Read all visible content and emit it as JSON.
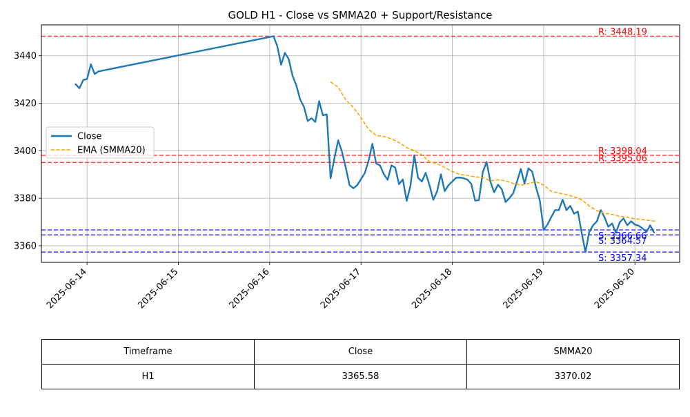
{
  "chart_data": {
    "type": "line",
    "title": "GOLD H1 - Close vs SMMA20 + Support/Resistance",
    "xlabel": "",
    "ylabel": "",
    "xlim": [
      "2025-06-13T12:00",
      "2025-06-20T11:45"
    ],
    "ylim": [
      3353,
      3453
    ],
    "x_ticks": [
      "2025-06-14",
      "2025-06-15",
      "2025-06-16",
      "2025-06-17",
      "2025-06-18",
      "2025-06-19",
      "2025-06-20"
    ],
    "y_ticks": [
      3360,
      3380,
      3400,
      3420,
      3440
    ],
    "grid": true,
    "legend": {
      "position": "center-left",
      "entries": [
        "Close",
        "EMA (SMMA20)"
      ]
    },
    "series": [
      {
        "name": "Close",
        "color": "#1f77b4",
        "style": "solid",
        "points": [
          [
            "2025-06-13T21:00",
            3428.0
          ],
          [
            "2025-06-13T22:00",
            3426.3
          ],
          [
            "2025-06-13T23:00",
            3429.8
          ],
          [
            "2025-06-14T00:00",
            3430.2
          ],
          [
            "2025-06-14T01:00",
            3436.4
          ],
          [
            "2025-06-14T02:00",
            3432.3
          ],
          [
            "2025-06-14T03:00",
            3433.4
          ],
          [
            "2025-06-16T01:00",
            3448.2
          ],
          [
            "2025-06-16T02:00",
            3444.0
          ],
          [
            "2025-06-16T03:00",
            3436.2
          ],
          [
            "2025-06-16T04:00",
            3441.2
          ],
          [
            "2025-06-16T05:00",
            3438.6
          ],
          [
            "2025-06-16T06:00",
            3431.6
          ],
          [
            "2025-06-16T07:00",
            3427.6
          ],
          [
            "2025-06-16T08:00",
            3421.6
          ],
          [
            "2025-06-16T09:00",
            3418.5
          ],
          [
            "2025-06-16T10:00",
            3412.5
          ],
          [
            "2025-06-16T11:00",
            3413.7
          ],
          [
            "2025-06-16T12:00",
            3412.1
          ],
          [
            "2025-06-16T13:00",
            3420.9
          ],
          [
            "2025-06-16T14:00",
            3414.9
          ],
          [
            "2025-06-16T15:00",
            3415.3
          ],
          [
            "2025-06-16T16:00",
            3388.4
          ],
          [
            "2025-06-16T17:00",
            3396.8
          ],
          [
            "2025-06-16T18:00",
            3404.4
          ],
          [
            "2025-06-16T19:00",
            3399.6
          ],
          [
            "2025-06-16T20:00",
            3392.9
          ],
          [
            "2025-06-16T21:00",
            3385.5
          ],
          [
            "2025-06-16T22:00",
            3384.2
          ],
          [
            "2025-06-16T23:00",
            3385.5
          ],
          [
            "2025-06-17T01:00",
            3390.6
          ],
          [
            "2025-06-17T02:00",
            3395.8
          ],
          [
            "2025-06-17T03:00",
            3402.9
          ],
          [
            "2025-06-17T04:00",
            3394.6
          ],
          [
            "2025-06-17T05:00",
            3393.8
          ],
          [
            "2025-06-17T06:00",
            3390.1
          ],
          [
            "2025-06-17T07:00",
            3387.8
          ],
          [
            "2025-06-17T08:00",
            3393.8
          ],
          [
            "2025-06-17T09:00",
            3392.9
          ],
          [
            "2025-06-17T10:00",
            3385.9
          ],
          [
            "2025-06-17T11:00",
            3387.9
          ],
          [
            "2025-06-17T12:00",
            3378.9
          ],
          [
            "2025-06-17T13:00",
            3385.3
          ],
          [
            "2025-06-17T14:00",
            3398.1
          ],
          [
            "2025-06-17T15:00",
            3388.6
          ],
          [
            "2025-06-17T16:00",
            3387.0
          ],
          [
            "2025-06-17T17:00",
            3390.7
          ],
          [
            "2025-06-17T18:00",
            3385.5
          ],
          [
            "2025-06-17T19:00",
            3379.3
          ],
          [
            "2025-06-17T20:00",
            3382.9
          ],
          [
            "2025-06-17T21:00",
            3390.1
          ],
          [
            "2025-06-17T22:00",
            3383.0
          ],
          [
            "2025-06-17T23:00",
            3385.5
          ],
          [
            "2025-06-18T01:00",
            3388.6
          ],
          [
            "2025-06-18T02:00",
            3388.7
          ],
          [
            "2025-06-18T03:00",
            3388.4
          ],
          [
            "2025-06-18T04:00",
            3387.8
          ],
          [
            "2025-06-18T05:00",
            3386.0
          ],
          [
            "2025-06-18T06:00",
            3379.0
          ],
          [
            "2025-06-18T07:00",
            3379.2
          ],
          [
            "2025-06-18T08:00",
            3390.9
          ],
          [
            "2025-06-18T09:00",
            3395.3
          ],
          [
            "2025-06-18T10:00",
            3387.0
          ],
          [
            "2025-06-18T11:00",
            3382.5
          ],
          [
            "2025-06-18T12:00",
            3385.7
          ],
          [
            "2025-06-18T13:00",
            3383.8
          ],
          [
            "2025-06-18T14:00",
            3378.4
          ],
          [
            "2025-06-18T15:00",
            3380.0
          ],
          [
            "2025-06-18T16:00",
            3382.1
          ],
          [
            "2025-06-18T17:00",
            3387.0
          ],
          [
            "2025-06-18T18:00",
            3392.3
          ],
          [
            "2025-06-18T19:00",
            3386.2
          ],
          [
            "2025-06-18T20:00",
            3392.6
          ],
          [
            "2025-06-18T21:00",
            3391.2
          ],
          [
            "2025-06-18T22:00",
            3384.6
          ],
          [
            "2025-06-18T23:00",
            3379.0
          ],
          [
            "2025-06-19T00:00",
            3366.7
          ],
          [
            "2025-06-19T01:00",
            3368.9
          ],
          [
            "2025-06-19T02:00",
            3372.0
          ],
          [
            "2025-06-19T03:00",
            3375.0
          ],
          [
            "2025-06-19T04:00",
            3375.0
          ],
          [
            "2025-06-19T05:00",
            3379.4
          ],
          [
            "2025-06-19T06:00",
            3375.0
          ],
          [
            "2025-06-19T07:00",
            3376.8
          ],
          [
            "2025-06-19T08:00",
            3373.5
          ],
          [
            "2025-06-19T09:00",
            3374.4
          ],
          [
            "2025-06-19T10:00",
            3365.4
          ],
          [
            "2025-06-19T11:00",
            3357.3
          ],
          [
            "2025-06-19T12:00",
            3365.8
          ],
          [
            "2025-06-19T13:00",
            3368.6
          ],
          [
            "2025-06-19T14:00",
            3370.3
          ],
          [
            "2025-06-19T15:00",
            3375.0
          ],
          [
            "2025-06-19T16:00",
            3372.0
          ],
          [
            "2025-06-19T17:00",
            3368.0
          ],
          [
            "2025-06-19T18:00",
            3369.4
          ],
          [
            "2025-06-19T19:00",
            3365.4
          ],
          [
            "2025-06-19T20:00",
            3369.9
          ],
          [
            "2025-06-19T21:00",
            3371.5
          ],
          [
            "2025-06-19T22:00",
            3368.6
          ],
          [
            "2025-06-19T23:00",
            3370.3
          ],
          [
            "2025-06-20T00:00",
            3368.9
          ],
          [
            "2025-06-20T01:00",
            3368.4
          ],
          [
            "2025-06-20T02:00",
            3367.3
          ],
          [
            "2025-06-20T03:00",
            3365.8
          ],
          [
            "2025-06-20T04:00",
            3368.6
          ],
          [
            "2025-06-20T05:00",
            3365.6
          ]
        ]
      },
      {
        "name": "EMA (SMMA20)",
        "color": "#ffa500",
        "style": "dashed",
        "points": [
          [
            "2025-06-16T16:00",
            3429.0
          ],
          [
            "2025-06-16T18:00",
            3426.7
          ],
          [
            "2025-06-16T20:00",
            3421.5
          ],
          [
            "2025-06-16T22:00",
            3418.2
          ],
          [
            "2025-06-17T00:00",
            3414.0
          ],
          [
            "2025-06-17T02:00",
            3409.0
          ],
          [
            "2025-06-17T04:00",
            3406.5
          ],
          [
            "2025-06-17T06:00",
            3406.0
          ],
          [
            "2025-06-17T08:00",
            3405.0
          ],
          [
            "2025-06-17T10:00",
            3403.5
          ],
          [
            "2025-06-17T12:00",
            3401.3
          ],
          [
            "2025-06-17T14:00",
            3400.0
          ],
          [
            "2025-06-17T16:00",
            3398.3
          ],
          [
            "2025-06-17T18:00",
            3395.3
          ],
          [
            "2025-06-17T20:00",
            3394.5
          ],
          [
            "2025-06-17T22:00",
            3393.0
          ],
          [
            "2025-06-18T00:00",
            3391.2
          ],
          [
            "2025-06-18T02:00",
            3390.0
          ],
          [
            "2025-06-18T04:00",
            3389.6
          ],
          [
            "2025-06-18T06:00",
            3389.0
          ],
          [
            "2025-06-18T08:00",
            3388.8
          ],
          [
            "2025-06-18T10:00",
            3387.3
          ],
          [
            "2025-06-18T12:00",
            3387.8
          ],
          [
            "2025-06-18T14:00",
            3387.3
          ],
          [
            "2025-06-18T16:00",
            3386.2
          ],
          [
            "2025-06-18T18:00",
            3385.5
          ],
          [
            "2025-06-18T20:00",
            3386.2
          ],
          [
            "2025-06-18T22:00",
            3386.9
          ],
          [
            "2025-06-19T00:00",
            3385.6
          ],
          [
            "2025-06-19T02:00",
            3382.9
          ],
          [
            "2025-06-19T04:00",
            3382.2
          ],
          [
            "2025-06-19T06:00",
            3381.5
          ],
          [
            "2025-06-19T08:00",
            3380.6
          ],
          [
            "2025-06-19T10:00",
            3379.4
          ],
          [
            "2025-06-19T12:00",
            3376.7
          ],
          [
            "2025-06-19T14:00",
            3374.8
          ],
          [
            "2025-06-19T16:00",
            3373.6
          ],
          [
            "2025-06-19T18:00",
            3373.2
          ],
          [
            "2025-06-19T20:00",
            3372.4
          ],
          [
            "2025-06-19T22:00",
            3372.0
          ],
          [
            "2025-06-20T00:00",
            3371.3
          ],
          [
            "2025-06-20T02:00",
            3371.0
          ],
          [
            "2025-06-20T04:00",
            3370.6
          ],
          [
            "2025-06-20T05:30",
            3370.3
          ]
        ]
      }
    ],
    "levels": [
      {
        "kind": "resistance",
        "value": 3448.19,
        "label": "R: 3448.19",
        "color": "#ff0000"
      },
      {
        "kind": "resistance",
        "value": 3398.04,
        "label": "R: 3398.04",
        "color": "#ff0000"
      },
      {
        "kind": "resistance",
        "value": 3395.06,
        "label": "R: 3395.06",
        "color": "#ff0000"
      },
      {
        "kind": "support",
        "value": 3366.66,
        "label": "S: 3366.66",
        "color": "#0000ff"
      },
      {
        "kind": "support",
        "value": 3364.57,
        "label": "S: 3364.57",
        "color": "#0000ff"
      },
      {
        "kind": "support",
        "value": 3357.34,
        "label": "S: 3357.34",
        "color": "#0000ff"
      }
    ]
  },
  "table": {
    "headers": [
      "Timeframe",
      "Close",
      "SMMA20"
    ],
    "rows": [
      [
        "H1",
        "3365.58",
        "3370.02"
      ]
    ]
  }
}
